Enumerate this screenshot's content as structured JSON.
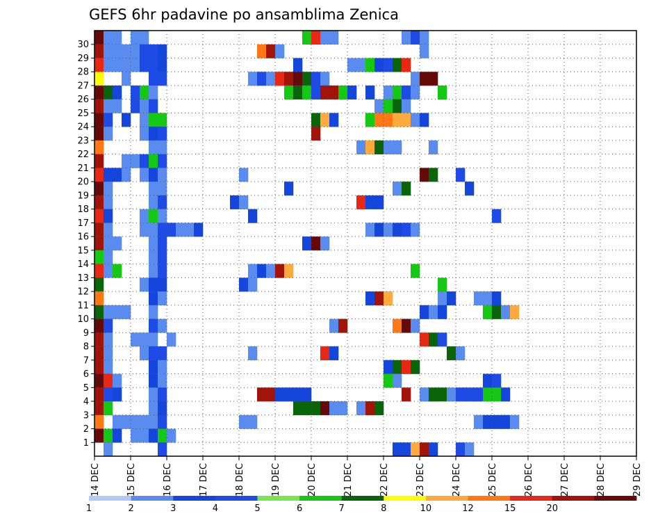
{
  "chart_data": {
    "type": "heatmap",
    "title": "GEFS 6hr padavine po ansamblima Zenica",
    "x_tick_labels": [
      "14 DEC",
      "15 DEC",
      "16 DEC",
      "17 DEC",
      "18 DEC",
      "19 DEC",
      "20 DEC",
      "21 DEC",
      "22 DEC",
      "23 DEC",
      "24 DEC",
      "25 DEC",
      "26 DEC",
      "27 DEC",
      "28 DEC",
      "29 DEC"
    ],
    "y_tick_labels": [
      "1",
      "2",
      "3",
      "4",
      "5",
      "6",
      "7",
      "8",
      "9",
      "10",
      "11",
      "12",
      "13",
      "14",
      "15",
      "16",
      "17",
      "18",
      "19",
      "20",
      "21",
      "22",
      "23",
      "24",
      "25",
      "26",
      "27",
      "28",
      "29",
      "30"
    ],
    "steps_per_day": 4,
    "members": 31,
    "legend": {
      "labels": [
        "1",
        "2",
        "3",
        "4",
        "5",
        "6",
        "7",
        "8",
        "10",
        "12",
        "15",
        "20"
      ],
      "colors": [
        "#b4c8f5",
        "#5a8cf0",
        "#1446dc",
        "#1e4be6",
        "#78e650",
        "#14c814",
        "#0a640a",
        "#ffff00",
        "#ffaa3c",
        "#ff7814",
        "#e62814",
        "#a0140a",
        "#640a0a"
      ]
    },
    "cells": [
      [
        0,
        30,
        12
      ],
      [
        1,
        30,
        1
      ],
      [
        2,
        30,
        1
      ],
      [
        4,
        30,
        1
      ],
      [
        5,
        30,
        1
      ],
      [
        23,
        30,
        5
      ],
      [
        24,
        30,
        10
      ],
      [
        25,
        30,
        1
      ],
      [
        26,
        30,
        1
      ],
      [
        34,
        30,
        1
      ],
      [
        35,
        30,
        3
      ],
      [
        36,
        30,
        1
      ],
      [
        0,
        29,
        11
      ],
      [
        1,
        29,
        1
      ],
      [
        2,
        29,
        1
      ],
      [
        3,
        29,
        1
      ],
      [
        4,
        29,
        1
      ],
      [
        5,
        29,
        3
      ],
      [
        6,
        29,
        3
      ],
      [
        7,
        29,
        2
      ],
      [
        18,
        29,
        9
      ],
      [
        19,
        29,
        11
      ],
      [
        20,
        29,
        1
      ],
      [
        36,
        29,
        1
      ],
      [
        0,
        28,
        10
      ],
      [
        1,
        28,
        1
      ],
      [
        2,
        28,
        1
      ],
      [
        3,
        28,
        1
      ],
      [
        4,
        28,
        1
      ],
      [
        5,
        28,
        3
      ],
      [
        6,
        28,
        3
      ],
      [
        7,
        28,
        2
      ],
      [
        22,
        28,
        2
      ],
      [
        28,
        28,
        1
      ],
      [
        29,
        28,
        1
      ],
      [
        30,
        28,
        5
      ],
      [
        31,
        28,
        2
      ],
      [
        32,
        28,
        3
      ],
      [
        33,
        28,
        6
      ],
      [
        34,
        28,
        10
      ],
      [
        0,
        27,
        7
      ],
      [
        3,
        27,
        1
      ],
      [
        6,
        27,
        3
      ],
      [
        7,
        27,
        3
      ],
      [
        17,
        27,
        1
      ],
      [
        18,
        27,
        3
      ],
      [
        19,
        27,
        1
      ],
      [
        20,
        27,
        10
      ],
      [
        21,
        27,
        11
      ],
      [
        22,
        27,
        12
      ],
      [
        23,
        27,
        6
      ],
      [
        24,
        27,
        3
      ],
      [
        25,
        27,
        1
      ],
      [
        35,
        27,
        1
      ],
      [
        36,
        27,
        12
      ],
      [
        37,
        27,
        12
      ],
      [
        0,
        26,
        12
      ],
      [
        1,
        26,
        6
      ],
      [
        2,
        26,
        2
      ],
      [
        4,
        26,
        3
      ],
      [
        5,
        26,
        5
      ],
      [
        6,
        26,
        1
      ],
      [
        21,
        26,
        5
      ],
      [
        22,
        26,
        6
      ],
      [
        23,
        26,
        5
      ],
      [
        24,
        26,
        3
      ],
      [
        25,
        26,
        11
      ],
      [
        26,
        26,
        11
      ],
      [
        27,
        26,
        5
      ],
      [
        28,
        26,
        2
      ],
      [
        30,
        26,
        2
      ],
      [
        32,
        26,
        1
      ],
      [
        33,
        26,
        5
      ],
      [
        34,
        26,
        3
      ],
      [
        35,
        26,
        1
      ],
      [
        38,
        26,
        5
      ],
      [
        0,
        25,
        11
      ],
      [
        1,
        25,
        1
      ],
      [
        2,
        25,
        1
      ],
      [
        4,
        25,
        3
      ],
      [
        5,
        25,
        1
      ],
      [
        6,
        25,
        3
      ],
      [
        31,
        25,
        1
      ],
      [
        32,
        25,
        5
      ],
      [
        33,
        25,
        6
      ],
      [
        34,
        25,
        1
      ],
      [
        0,
        24,
        12
      ],
      [
        1,
        24,
        3
      ],
      [
        3,
        24,
        2
      ],
      [
        5,
        24,
        1
      ],
      [
        6,
        24,
        5
      ],
      [
        7,
        24,
        5
      ],
      [
        24,
        24,
        6
      ],
      [
        25,
        24,
        8
      ],
      [
        26,
        24,
        2
      ],
      [
        30,
        24,
        5
      ],
      [
        31,
        24,
        9
      ],
      [
        32,
        24,
        9
      ],
      [
        33,
        24,
        8
      ],
      [
        34,
        24,
        8
      ],
      [
        35,
        24,
        1
      ],
      [
        36,
        24,
        2
      ],
      [
        0,
        23,
        12
      ],
      [
        1,
        23,
        1
      ],
      [
        5,
        23,
        1
      ],
      [
        6,
        23,
        2
      ],
      [
        7,
        23,
        3
      ],
      [
        24,
        23,
        11
      ],
      [
        0,
        22,
        9
      ],
      [
        6,
        22,
        1
      ],
      [
        7,
        22,
        1
      ],
      [
        29,
        22,
        1
      ],
      [
        30,
        22,
        8
      ],
      [
        31,
        22,
        6
      ],
      [
        32,
        22,
        1
      ],
      [
        33,
        22,
        1
      ],
      [
        37,
        22,
        1
      ],
      [
        0,
        21,
        11
      ],
      [
        3,
        21,
        1
      ],
      [
        4,
        21,
        1
      ],
      [
        5,
        21,
        3
      ],
      [
        6,
        21,
        5
      ],
      [
        7,
        21,
        3
      ],
      [
        0,
        20,
        10
      ],
      [
        1,
        20,
        2
      ],
      [
        2,
        20,
        2
      ],
      [
        3,
        20,
        1
      ],
      [
        5,
        20,
        1
      ],
      [
        6,
        20,
        2
      ],
      [
        7,
        20,
        1
      ],
      [
        16,
        20,
        1
      ],
      [
        36,
        20,
        12
      ],
      [
        37,
        20,
        6
      ],
      [
        40,
        20,
        3
      ],
      [
        0,
        19,
        12
      ],
      [
        1,
        19,
        1
      ],
      [
        6,
        19,
        1
      ],
      [
        7,
        19,
        1
      ],
      [
        21,
        19,
        2
      ],
      [
        33,
        19,
        1
      ],
      [
        34,
        19,
        6
      ],
      [
        41,
        19,
        2
      ],
      [
        0,
        18,
        11
      ],
      [
        1,
        18,
        1
      ],
      [
        6,
        18,
        1
      ],
      [
        7,
        18,
        3
      ],
      [
        15,
        18,
        2
      ],
      [
        16,
        18,
        1
      ],
      [
        29,
        18,
        10
      ],
      [
        30,
        18,
        2
      ],
      [
        31,
        18,
        2
      ],
      [
        0,
        17,
        10
      ],
      [
        1,
        17,
        2
      ],
      [
        5,
        17,
        1
      ],
      [
        6,
        17,
        5
      ],
      [
        7,
        17,
        1
      ],
      [
        17,
        17,
        2
      ],
      [
        44,
        17,
        3
      ],
      [
        0,
        16,
        11
      ],
      [
        1,
        16,
        1
      ],
      [
        5,
        16,
        1
      ],
      [
        6,
        16,
        1
      ],
      [
        7,
        16,
        3
      ],
      [
        8,
        16,
        3
      ],
      [
        9,
        16,
        1
      ],
      [
        10,
        16,
        1
      ],
      [
        11,
        16,
        2
      ],
      [
        30,
        16,
        1
      ],
      [
        31,
        16,
        2
      ],
      [
        32,
        16,
        1
      ],
      [
        33,
        16,
        2
      ],
      [
        34,
        16,
        3
      ],
      [
        35,
        16,
        1
      ],
      [
        0,
        15,
        11
      ],
      [
        1,
        15,
        1
      ],
      [
        2,
        15,
        1
      ],
      [
        6,
        15,
        1
      ],
      [
        7,
        15,
        3
      ],
      [
        23,
        15,
        2
      ],
      [
        24,
        15,
        12
      ],
      [
        25,
        15,
        1
      ],
      [
        0,
        14,
        5
      ],
      [
        1,
        14,
        1
      ],
      [
        6,
        14,
        1
      ],
      [
        7,
        14,
        3
      ],
      [
        0,
        13,
        10
      ],
      [
        1,
        13,
        1
      ],
      [
        2,
        13,
        5
      ],
      [
        6,
        13,
        1
      ],
      [
        7,
        13,
        3
      ],
      [
        17,
        13,
        1
      ],
      [
        18,
        13,
        2
      ],
      [
        19,
        13,
        1
      ],
      [
        20,
        13,
        11
      ],
      [
        21,
        13,
        8
      ],
      [
        35,
        13,
        5
      ],
      [
        0,
        12,
        6
      ],
      [
        5,
        12,
        1
      ],
      [
        6,
        12,
        2
      ],
      [
        7,
        12,
        2
      ],
      [
        16,
        12,
        2
      ],
      [
        17,
        12,
        1
      ],
      [
        38,
        12,
        5
      ],
      [
        0,
        11,
        9
      ],
      [
        6,
        11,
        2
      ],
      [
        7,
        11,
        1
      ],
      [
        30,
        11,
        2
      ],
      [
        31,
        11,
        11
      ],
      [
        32,
        11,
        8
      ],
      [
        38,
        11,
        1
      ],
      [
        39,
        11,
        2
      ],
      [
        42,
        11,
        1
      ],
      [
        43,
        11,
        1
      ],
      [
        44,
        11,
        2
      ],
      [
        0,
        10,
        6
      ],
      [
        1,
        10,
        1
      ],
      [
        2,
        10,
        1
      ],
      [
        3,
        10,
        1
      ],
      [
        6,
        10,
        1
      ],
      [
        36,
        10,
        2
      ],
      [
        37,
        10,
        1
      ],
      [
        38,
        10,
        2
      ],
      [
        43,
        10,
        5
      ],
      [
        44,
        10,
        6
      ],
      [
        45,
        10,
        1
      ],
      [
        46,
        10,
        8
      ],
      [
        0,
        9,
        12
      ],
      [
        1,
        9,
        3
      ],
      [
        6,
        9,
        3
      ],
      [
        7,
        9,
        1
      ],
      [
        26,
        9,
        1
      ],
      [
        27,
        9,
        11
      ],
      [
        33,
        9,
        9
      ],
      [
        34,
        9,
        12
      ],
      [
        35,
        9,
        1
      ],
      [
        0,
        8,
        11
      ],
      [
        1,
        8,
        1
      ],
      [
        4,
        8,
        1
      ],
      [
        5,
        8,
        1
      ],
      [
        6,
        8,
        1
      ],
      [
        8,
        8,
        1
      ],
      [
        36,
        8,
        10
      ],
      [
        37,
        8,
        6
      ],
      [
        38,
        8,
        3
      ],
      [
        0,
        7,
        11
      ],
      [
        1,
        7,
        1
      ],
      [
        5,
        7,
        1
      ],
      [
        6,
        7,
        3
      ],
      [
        7,
        7,
        3
      ],
      [
        17,
        7,
        1
      ],
      [
        25,
        7,
        10
      ],
      [
        26,
        7,
        2
      ],
      [
        39,
        7,
        6
      ],
      [
        40,
        7,
        1
      ],
      [
        0,
        6,
        11
      ],
      [
        1,
        6,
        1
      ],
      [
        6,
        6,
        2
      ],
      [
        7,
        6,
        1
      ],
      [
        32,
        6,
        2
      ],
      [
        33,
        6,
        6
      ],
      [
        34,
        6,
        10
      ],
      [
        35,
        6,
        6
      ],
      [
        0,
        5,
        12
      ],
      [
        1,
        5,
        10
      ],
      [
        2,
        5,
        1
      ],
      [
        6,
        5,
        2
      ],
      [
        7,
        5,
        1
      ],
      [
        32,
        5,
        5
      ],
      [
        33,
        5,
        1
      ],
      [
        43,
        5,
        2
      ],
      [
        44,
        5,
        3
      ],
      [
        0,
        4,
        11
      ],
      [
        1,
        4,
        3
      ],
      [
        2,
        4,
        2
      ],
      [
        6,
        4,
        1
      ],
      [
        7,
        4,
        3
      ],
      [
        18,
        4,
        11
      ],
      [
        19,
        4,
        11
      ],
      [
        20,
        4,
        2
      ],
      [
        21,
        4,
        2
      ],
      [
        22,
        4,
        2
      ],
      [
        23,
        4,
        2
      ],
      [
        34,
        4,
        11
      ],
      [
        36,
        4,
        1
      ],
      [
        37,
        4,
        6
      ],
      [
        38,
        4,
        6
      ],
      [
        39,
        4,
        1
      ],
      [
        40,
        4,
        3
      ],
      [
        41,
        4,
        3
      ],
      [
        42,
        4,
        3
      ],
      [
        43,
        4,
        5
      ],
      [
        44,
        4,
        5
      ],
      [
        45,
        4,
        2
      ],
      [
        0,
        3,
        11
      ],
      [
        1,
        3,
        5
      ],
      [
        6,
        3,
        1
      ],
      [
        7,
        3,
        2
      ],
      [
        22,
        3,
        6
      ],
      [
        23,
        3,
        6
      ],
      [
        24,
        3,
        6
      ],
      [
        25,
        3,
        12
      ],
      [
        26,
        3,
        1
      ],
      [
        27,
        3,
        1
      ],
      [
        29,
        3,
        1
      ],
      [
        30,
        3,
        11
      ],
      [
        31,
        3,
        6
      ],
      [
        0,
        2,
        9
      ],
      [
        2,
        2,
        1
      ],
      [
        3,
        2,
        1
      ],
      [
        4,
        2,
        1
      ],
      [
        5,
        2,
        1
      ],
      [
        6,
        2,
        1
      ],
      [
        7,
        2,
        3
      ],
      [
        16,
        2,
        1
      ],
      [
        17,
        2,
        1
      ],
      [
        42,
        2,
        1
      ],
      [
        43,
        2,
        2
      ],
      [
        44,
        2,
        2
      ],
      [
        45,
        2,
        2
      ],
      [
        46,
        2,
        1
      ],
      [
        0,
        1,
        12
      ],
      [
        1,
        1,
        5
      ],
      [
        2,
        1,
        2
      ],
      [
        4,
        1,
        1
      ],
      [
        5,
        1,
        1
      ],
      [
        6,
        1,
        2
      ],
      [
        7,
        1,
        5
      ],
      [
        8,
        1,
        1
      ],
      [
        1,
        0,
        1
      ],
      [
        7,
        0,
        3
      ],
      [
        33,
        0,
        2
      ],
      [
        34,
        0,
        2
      ],
      [
        35,
        0,
        8
      ],
      [
        36,
        0,
        11
      ],
      [
        37,
        0,
        2
      ],
      [
        40,
        0,
        3
      ],
      [
        41,
        0,
        1
      ]
    ]
  }
}
